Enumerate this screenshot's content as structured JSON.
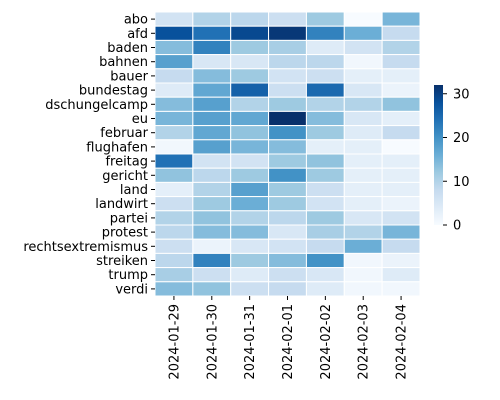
{
  "chart_data": {
    "type": "heatmap",
    "rows": [
      "abo",
      "afd",
      "baden",
      "bahnen",
      "bauer",
      "bundestag",
      "dschungelcamp",
      "eu",
      "februar",
      "flughafen",
      "freitag",
      "gericht",
      "land",
      "landwirt",
      "partei",
      "protest",
      "rechtsextremismus",
      "streiken",
      "trump",
      "verdi"
    ],
    "columns": [
      "2024-01-29",
      "2024-01-30",
      "2024-01-31",
      "2024-02-01",
      "2024-02-02",
      "2024-02-03",
      "2024-02-04"
    ],
    "values": [
      [
        6,
        10,
        9,
        7,
        12,
        0,
        15
      ],
      [
        28,
        24,
        29,
        31,
        22,
        16,
        8
      ],
      [
        14,
        22,
        12,
        11,
        4,
        6,
        10
      ],
      [
        18,
        5,
        5,
        9,
        9,
        1,
        8
      ],
      [
        8,
        14,
        12,
        6,
        7,
        3,
        3
      ],
      [
        4,
        17,
        26,
        7,
        25,
        5,
        2
      ],
      [
        14,
        18,
        10,
        12,
        10,
        10,
        13
      ],
      [
        15,
        18,
        17,
        32,
        14,
        5,
        3
      ],
      [
        10,
        17,
        13,
        20,
        12,
        4,
        8
      ],
      [
        1,
        18,
        15,
        14,
        3,
        3,
        0
      ],
      [
        24,
        6,
        6,
        12,
        13,
        3,
        3
      ],
      [
        13,
        9,
        12,
        20,
        12,
        3,
        3
      ],
      [
        3,
        10,
        18,
        12,
        7,
        3,
        3
      ],
      [
        7,
        12,
        16,
        12,
        6,
        3,
        2
      ],
      [
        10,
        13,
        10,
        9,
        12,
        5,
        6
      ],
      [
        9,
        14,
        14,
        5,
        11,
        10,
        15
      ],
      [
        7,
        2,
        5,
        6,
        8,
        16,
        8
      ],
      [
        9,
        22,
        12,
        14,
        20,
        1,
        2
      ],
      [
        11,
        7,
        4,
        7,
        5,
        1,
        4
      ],
      [
        14,
        13,
        7,
        8,
        4,
        1,
        1
      ]
    ],
    "colorbar": {
      "min": 0,
      "max": 32,
      "ticks": [
        0,
        10,
        20,
        30
      ]
    },
    "colormap": [
      "#f7fbff",
      "#deebf7",
      "#c6dbef",
      "#9ecae1",
      "#6baed6",
      "#4292c6",
      "#2171b5",
      "#08519c",
      "#08306b"
    ]
  }
}
